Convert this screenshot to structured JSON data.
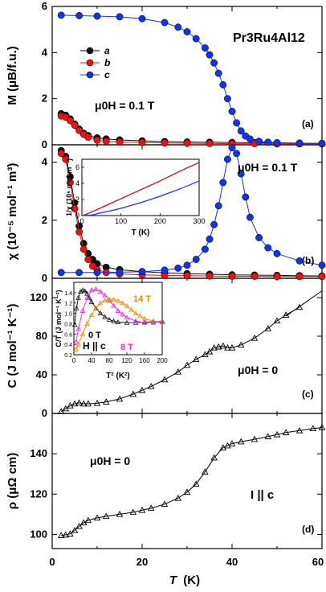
{
  "figure": {
    "xlabel_main": "T",
    "xlabel_unit": "(K)",
    "x_ticks": [
      "0",
      "20",
      "40",
      "60"
    ],
    "xlim": [
      0,
      60
    ]
  },
  "chart_data": [
    {
      "id": "a",
      "type": "scatter",
      "panel_label": "(a)",
      "compound": "Pr3Ru4Al12",
      "field_annotation": "μ0H = 0.1 T",
      "ylabel": "M (μB/f.u.)",
      "ylim": [
        0,
        6
      ],
      "y_ticks": [
        0,
        2,
        4,
        6
      ],
      "legend": {
        "placement": "top-left",
        "entries": [
          "a",
          "b",
          "c"
        ]
      },
      "colors": {
        "a": "#111111",
        "b": "#ee1111",
        "c": "#1133ee"
      },
      "series": [
        {
          "name": "a",
          "x": [
            2,
            3,
            4,
            5,
            6,
            7,
            8,
            10,
            12,
            15,
            20,
            25,
            30,
            35,
            40,
            45,
            50,
            55,
            60
          ],
          "y": [
            1.35,
            1.28,
            1.12,
            0.9,
            0.68,
            0.5,
            0.4,
            0.3,
            0.25,
            0.21,
            0.17,
            0.14,
            0.12,
            0.11,
            0.1,
            0.09,
            0.08,
            0.07,
            0.06
          ]
        },
        {
          "name": "b",
          "x": [
            2,
            3,
            4,
            5,
            6,
            7,
            8,
            10,
            12,
            15,
            20,
            25,
            30,
            35,
            40,
            45,
            50,
            55,
            60
          ],
          "y": [
            1.25,
            1.2,
            1.05,
            0.85,
            0.62,
            0.45,
            0.33,
            0.2,
            0.15,
            0.12,
            0.1,
            0.08,
            0.07,
            0.06,
            0.05,
            0.05,
            0.04,
            0.04,
            0.04
          ]
        },
        {
          "name": "c",
          "x": [
            2,
            6,
            10,
            15,
            20,
            25,
            28,
            30,
            32,
            34,
            35,
            36,
            37,
            38,
            39,
            40,
            41,
            42,
            43,
            44,
            46,
            48,
            50,
            55,
            60
          ],
          "y": [
            5.62,
            5.6,
            5.58,
            5.55,
            5.47,
            5.3,
            5.1,
            4.9,
            4.6,
            4.2,
            3.9,
            3.55,
            3.1,
            2.6,
            2.0,
            1.45,
            0.95,
            0.6,
            0.38,
            0.25,
            0.15,
            0.11,
            0.09,
            0.07,
            0.06
          ]
        }
      ]
    },
    {
      "id": "b",
      "type": "scatter",
      "panel_label": "(b)",
      "field_annotation": "μ0H = 0.1 T",
      "ylabel": "χ (10⁻⁵ mol⁻¹ m³)",
      "ylim": [
        0,
        4.6
      ],
      "y_ticks": [
        0,
        2,
        4
      ],
      "colors": {
        "a": "#111111",
        "b": "#ee1111",
        "c": "#1133ee"
      },
      "series": [
        {
          "name": "a",
          "x": [
            2,
            3,
            4,
            5,
            6,
            7,
            8,
            9,
            10,
            12,
            15,
            20,
            25,
            30,
            35,
            40,
            45,
            50,
            55,
            60
          ],
          "y": [
            4.4,
            4.2,
            3.5,
            2.6,
            1.8,
            1.2,
            0.85,
            0.65,
            0.5,
            0.38,
            0.3,
            0.23,
            0.19,
            0.16,
            0.14,
            0.12,
            0.11,
            0.1,
            0.09,
            0.08
          ]
        },
        {
          "name": "b",
          "x": [
            2,
            3,
            4,
            5,
            6,
            7,
            8,
            9,
            10,
            12,
            15,
            20,
            25,
            30,
            35,
            40,
            45,
            50,
            55,
            60
          ],
          "y": [
            4.3,
            4.1,
            3.3,
            2.4,
            1.6,
            1.0,
            0.65,
            0.42,
            0.3,
            0.2,
            0.15,
            0.12,
            0.1,
            0.09,
            0.08,
            0.07,
            0.07,
            0.06,
            0.06,
            0.06
          ]
        },
        {
          "name": "c",
          "x": [
            2,
            6,
            10,
            15,
            20,
            25,
            28,
            30,
            32,
            34,
            35,
            36,
            37,
            38,
            39,
            40,
            41,
            42,
            43,
            44,
            46,
            48,
            50,
            55,
            60
          ],
          "y": [
            0.2,
            0.2,
            0.2,
            0.21,
            0.23,
            0.28,
            0.35,
            0.45,
            0.65,
            1.0,
            1.35,
            1.85,
            2.5,
            3.3,
            4.1,
            4.5,
            4.3,
            3.6,
            2.8,
            2.1,
            1.4,
            1.05,
            0.85,
            0.6,
            0.45
          ]
        }
      ],
      "inset": {
        "type": "line",
        "xlabel": "T (K)",
        "ylabel": "1/χ (10⁶ mol m⁻³)",
        "xlim": [
          0,
          300
        ],
        "ylim": [
          0,
          7
        ],
        "x_ticks": [
          0,
          100,
          200,
          300
        ],
        "y_ticks": [
          0,
          2,
          4,
          6
        ],
        "series": [
          {
            "name": "a",
            "x": [
              5,
              10,
              20,
              30,
              50,
              100,
              150,
              200,
              250,
              300
            ],
            "y": [
              0.05,
              0.15,
              0.35,
              0.55,
              1.0,
              2.1,
              3.2,
              4.3,
              5.5,
              6.6
            ]
          },
          {
            "name": "b",
            "x": [
              5,
              10,
              20,
              30,
              50,
              100,
              150,
              200,
              250,
              300
            ],
            "y": [
              0.05,
              0.15,
              0.35,
              0.55,
              1.0,
              2.1,
              3.2,
              4.3,
              5.5,
              6.6
            ]
          },
          {
            "name": "c",
            "x": [
              3,
              10,
              20,
              30,
              40,
              50,
              70,
              100,
              150,
              200,
              250,
              300
            ],
            "y": [
              0.05,
              0.05,
              0.05,
              0.1,
              0.25,
              0.35,
              0.55,
              0.9,
              1.6,
              2.4,
              3.3,
              4.3
            ]
          }
        ]
      }
    },
    {
      "id": "c",
      "type": "scatter",
      "panel_label": "(c)",
      "field_annotation": "μ0H = 0",
      "ylabel": "C (J mol⁻¹ K⁻¹)",
      "ylim": [
        0,
        140
      ],
      "y_ticks": [
        0,
        40,
        80,
        120
      ],
      "series": [
        {
          "name": "C",
          "x": [
            2,
            3,
            4,
            5,
            6,
            7,
            8,
            10,
            12,
            15,
            18,
            20,
            22,
            25,
            28,
            30,
            32,
            34,
            35,
            36,
            37,
            38,
            39,
            40,
            42,
            45,
            48,
            50,
            52,
            55
          ],
          "y": [
            2,
            5,
            8,
            10,
            11,
            10,
            10,
            10.5,
            12,
            15,
            20,
            24,
            28,
            35,
            43,
            50,
            56,
            61,
            64,
            68,
            69,
            70,
            68,
            68,
            71,
            78,
            88,
            96,
            102,
            110
          ]
        }
      ],
      "fit_line": {
        "x": [
          52,
          60
        ],
        "y": [
          101,
          127
        ]
      },
      "inset": {
        "type": "scatter",
        "xlabel": "T² (K²)",
        "ylabel": "C/T (J mol⁻¹ K⁻²)",
        "xlim": [
          0,
          200
        ],
        "ylim": [
          0.2,
          1.6
        ],
        "x_ticks": [
          0,
          40,
          80,
          120,
          160,
          200
        ],
        "y_ticks": [
          0.2,
          0.4,
          0.6,
          0.8,
          1.0,
          1.2,
          1.4
        ],
        "annotation": "H || c",
        "colors": {
          "0 T": "#111111",
          "8 T": "#ee22ee",
          "14 T": "#ee8800"
        },
        "series": [
          {
            "name": "0 T",
            "x": [
              2,
              6,
              10,
              15,
              20,
              25,
              30,
              35,
              40,
              50,
              60,
              70,
              80,
              90,
              100,
              120,
              140,
              160,
              180,
              200
            ],
            "y": [
              0.78,
              1.1,
              1.3,
              1.42,
              1.45,
              1.43,
              1.38,
              1.3,
              1.22,
              1.1,
              1.0,
              0.93,
              0.88,
              0.85,
              0.83,
              0.82,
              0.82,
              0.83,
              0.84,
              0.85
            ]
          },
          {
            "name": "8 T",
            "x": [
              5,
              10,
              20,
              30,
              40,
              50,
              60,
              70,
              80,
              90,
              100,
              110,
              120,
              140,
              160,
              180,
              200
            ],
            "y": [
              0.45,
              0.7,
              1.05,
              1.3,
              1.45,
              1.47,
              1.42,
              1.35,
              1.25,
              1.15,
              1.05,
              0.98,
              0.92,
              0.85,
              0.82,
              0.82,
              0.83
            ]
          },
          {
            "name": "14 T",
            "x": [
              5,
              10,
              20,
              30,
              40,
              50,
              60,
              70,
              80,
              90,
              100,
              110,
              120,
              130,
              140,
              150,
              160,
              180,
              200
            ],
            "y": [
              0.3,
              0.4,
              0.6,
              0.8,
              0.97,
              1.1,
              1.2,
              1.25,
              1.27,
              1.27,
              1.24,
              1.2,
              1.14,
              1.07,
              1.0,
              0.95,
              0.9,
              0.85,
              0.84
            ]
          }
        ]
      }
    },
    {
      "id": "d",
      "type": "scatter",
      "panel_label": "(d)",
      "field_annotation": "μ0H = 0",
      "current_annotation": "I || c",
      "ylabel": "ρ (μΩ cm)",
      "ylim": [
        93,
        160
      ],
      "y_ticks": [
        100,
        120,
        140
      ],
      "series": [
        {
          "name": "ρ",
          "x": [
            2,
            3,
            4,
            5,
            6,
            7,
            8,
            10,
            12,
            15,
            18,
            20,
            22,
            25,
            28,
            30,
            32,
            34,
            36,
            38,
            39,
            40,
            42,
            45,
            48,
            50,
            52,
            55,
            58,
            60
          ],
          "y": [
            99.5,
            99.8,
            100.3,
            102,
            104,
            105.8,
            107,
            108.2,
            109,
            110,
            111,
            112,
            113,
            115,
            118,
            121,
            125,
            131,
            138,
            143,
            144,
            145,
            146,
            147.2,
            148.5,
            149.5,
            150.5,
            151.5,
            152.5,
            153
          ]
        }
      ]
    }
  ]
}
